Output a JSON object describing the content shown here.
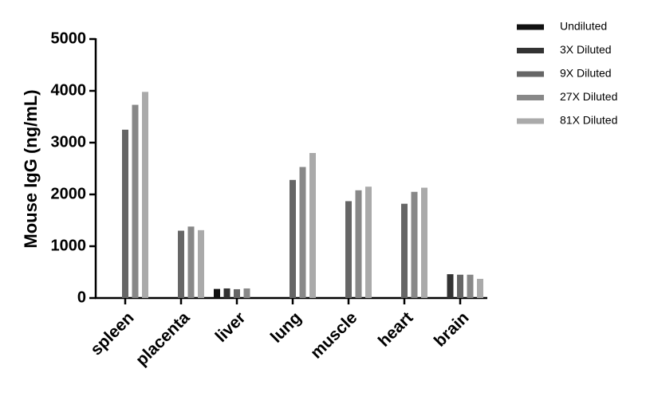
{
  "chart_data": {
    "type": "bar",
    "y_label": "Mouse IgG (ng/mL)",
    "categories": [
      "spleen",
      "placenta",
      "liver",
      "lung",
      "muscle",
      "heart",
      "brain"
    ],
    "series": [
      {
        "name": "Undiluted",
        "color": "#111111",
        "values": [
          null,
          null,
          175,
          null,
          null,
          null,
          null
        ]
      },
      {
        "name": "3X Diluted",
        "color": "#333333",
        "values": [
          null,
          null,
          185,
          null,
          null,
          null,
          460
        ]
      },
      {
        "name": "9X Diluted",
        "color": "#666666",
        "values": [
          3250,
          1300,
          170,
          2280,
          1870,
          1820,
          450
        ]
      },
      {
        "name": "27X Diluted",
        "color": "#888888",
        "values": [
          3730,
          1380,
          185,
          2530,
          2080,
          2050,
          450
        ]
      },
      {
        "name": "81X Diluted",
        "color": "#aaaaaa",
        "values": [
          3980,
          1310,
          null,
          2800,
          2150,
          2130,
          370
        ]
      }
    ],
    "ylim": [
      0,
      5000
    ],
    "yticks": [
      0,
      1000,
      2000,
      3000,
      4000,
      5000
    ],
    "legend": "right"
  }
}
